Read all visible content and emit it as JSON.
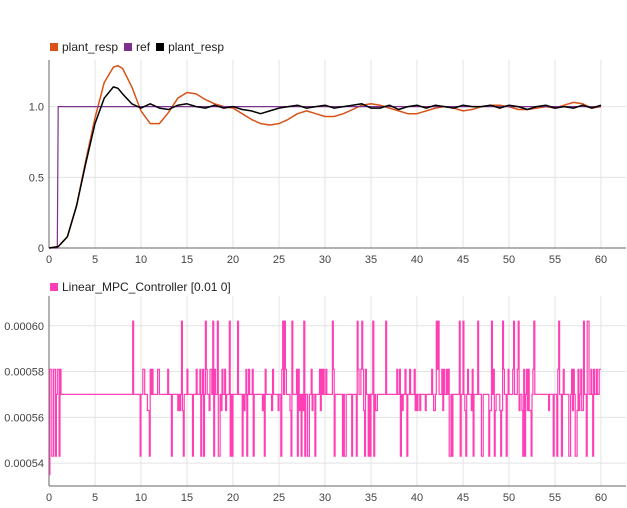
{
  "colors": {
    "background": "#ffffff",
    "grid": "#e3e3e3",
    "axis": "#666666"
  },
  "chart_data": [
    {
      "type": "line",
      "legend": [
        {
          "name": "plant_resp",
          "color": "#d95319"
        },
        {
          "name": "ref",
          "color": "#7e2f8e"
        },
        {
          "name": "plant_resp",
          "color": "#000000"
        }
      ],
      "xlim": [
        0,
        60
      ],
      "ylim": [
        0,
        1.33
      ],
      "xticks": [
        "0",
        "5",
        "10",
        "15",
        "20",
        "25",
        "30",
        "35",
        "40",
        "45",
        "50",
        "55",
        "60"
      ],
      "yticks": [
        "0",
        "0.5",
        "1.0"
      ],
      "ytick_values": [
        0,
        0.5,
        1.0
      ],
      "grid": true,
      "legend_position": "top-left",
      "series": [
        {
          "name": "plant_resp",
          "color": "#d95319",
          "x": [
            0,
            1,
            2,
            3,
            4,
            5,
            6,
            7,
            7.5,
            8,
            9,
            10,
            11,
            12,
            13,
            14,
            15,
            16,
            17,
            18,
            19,
            20,
            21,
            22,
            23,
            24,
            25,
            26,
            27,
            28,
            29,
            30,
            31,
            32,
            33,
            34,
            35,
            36,
            37,
            38,
            39,
            40,
            41,
            42,
            43,
            44,
            45,
            46,
            47,
            48,
            49,
            50,
            51,
            52,
            53,
            54,
            55,
            56,
            57,
            58,
            59,
            60
          ],
          "y": [
            0,
            0.01,
            0.08,
            0.3,
            0.62,
            0.92,
            1.17,
            1.28,
            1.29,
            1.27,
            1.14,
            0.97,
            0.88,
            0.88,
            0.96,
            1.06,
            1.1,
            1.09,
            1.05,
            1.02,
            1.0,
            0.99,
            0.95,
            0.91,
            0.88,
            0.87,
            0.88,
            0.91,
            0.95,
            0.97,
            0.95,
            0.93,
            0.93,
            0.95,
            0.98,
            1.01,
            1.02,
            1.01,
            0.99,
            0.97,
            0.95,
            0.95,
            0.97,
            0.99,
            1.0,
            0.99,
            0.97,
            0.98,
            1.0,
            1.01,
            1.01,
            1.0,
            0.98,
            0.98,
            0.99,
            1.0,
            0.99,
            1.01,
            1.03,
            1.02,
            0.99,
            1.0
          ]
        },
        {
          "name": "ref",
          "color": "#7e2f8e",
          "x": [
            0,
            0.9,
            1.0,
            60
          ],
          "y": [
            0,
            0,
            1.0,
            1.0
          ]
        },
        {
          "name": "plant_resp",
          "color": "#000000",
          "x": [
            0,
            1,
            2,
            3,
            4,
            5,
            6,
            7,
            7.5,
            8,
            9,
            10,
            11,
            12,
            13,
            14,
            15,
            16,
            17,
            18,
            19,
            20,
            21,
            22,
            23,
            24,
            25,
            26,
            27,
            28,
            29,
            30,
            31,
            32,
            33,
            34,
            35,
            36,
            37,
            38,
            39,
            40,
            41,
            42,
            43,
            44,
            45,
            46,
            47,
            48,
            49,
            50,
            51,
            52,
            53,
            54,
            55,
            56,
            57,
            58,
            59,
            60
          ],
          "y": [
            0,
            0.01,
            0.08,
            0.3,
            0.6,
            0.88,
            1.06,
            1.14,
            1.13,
            1.09,
            1.02,
            0.99,
            1.02,
            0.99,
            0.98,
            1.01,
            1.02,
            1.0,
            0.99,
            1.01,
            0.99,
            1.0,
            0.98,
            0.97,
            0.95,
            0.97,
            0.99,
            1.0,
            1.01,
            0.99,
            1.0,
            1.01,
            0.99,
            1.0,
            1.01,
            1.02,
            0.99,
            0.99,
            1.01,
            0.98,
            1.0,
            1.01,
            0.99,
            1.01,
            1.0,
            0.99,
            1.01,
            1.0,
            1.0,
            1.01,
            0.99,
            1.01,
            1.0,
            0.98,
            1.0,
            1.01,
            0.99,
            1.0,
            0.99,
            1.01,
            0.99,
            1.01
          ]
        }
      ]
    },
    {
      "type": "line",
      "legend": [
        {
          "name": "Linear_MPC_Controller [0.01 0]",
          "color": "#ff3fb4"
        }
      ],
      "xlim": [
        0,
        60
      ],
      "ylim": [
        0.00531,
        0.000613
      ],
      "ylim_note": "",
      "yrange": [
        0.00053,
        0.000613
      ],
      "xticks": [
        "0",
        "5",
        "10",
        "15",
        "20",
        "25",
        "30",
        "35",
        "40",
        "45",
        "50",
        "55",
        "60"
      ],
      "yticks": [
        "0.00054",
        "0.00056",
        "0.00058",
        "0.00060"
      ],
      "ytick_values": [
        0.00054,
        0.00056,
        0.00058,
        0.0006
      ],
      "grid": true,
      "legend_position": "top-left",
      "series": [
        {
          "name": "Linear_MPC_Controller [0.01 0]",
          "color": "#ff3fb4",
          "baseline": 0.00057,
          "levels": [
            0.000543,
            0.000563,
            0.00057,
            0.000578,
            0.000581,
            0.000602
          ],
          "x_end": 60
        }
      ]
    }
  ]
}
